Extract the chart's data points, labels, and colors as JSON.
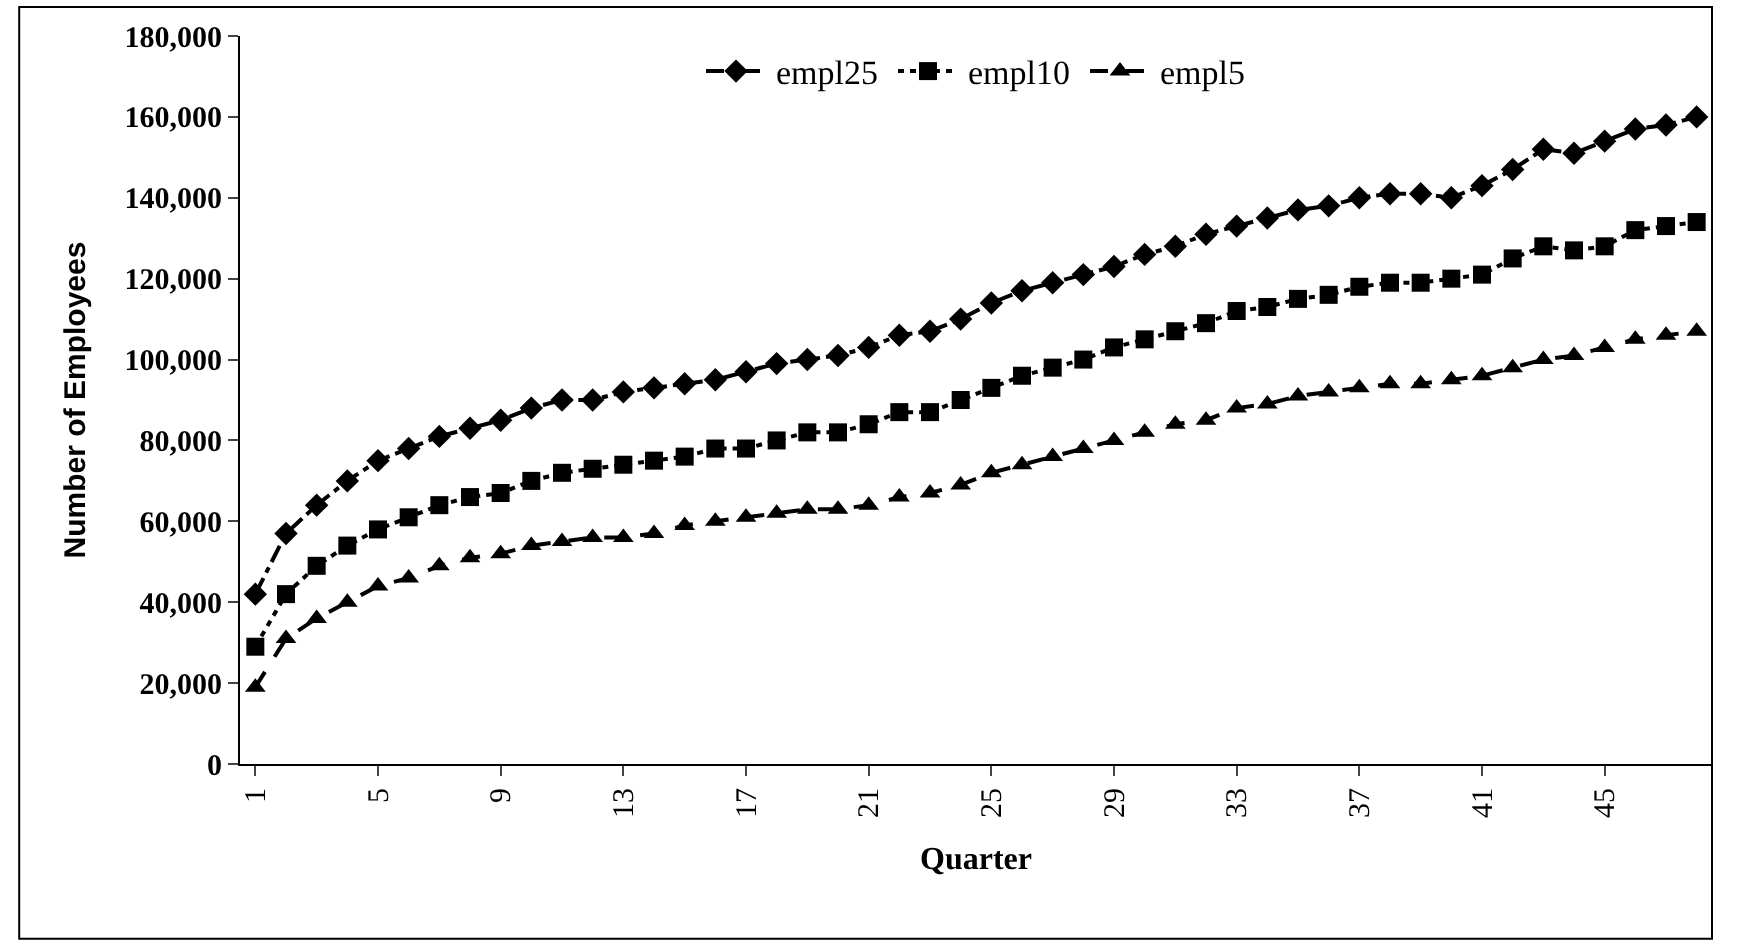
{
  "chart_data": {
    "type": "line",
    "xlabel": "Quarter",
    "ylabel": "Number of Employees",
    "x": [
      1,
      2,
      3,
      4,
      5,
      6,
      7,
      8,
      9,
      10,
      11,
      12,
      13,
      14,
      15,
      16,
      17,
      18,
      19,
      20,
      21,
      22,
      23,
      24,
      25,
      26,
      27,
      28,
      29,
      30,
      31,
      32,
      33,
      34,
      35,
      36,
      37,
      38,
      39,
      40,
      41,
      42,
      43,
      44,
      45,
      46,
      47,
      48
    ],
    "xlim": [
      0.5,
      48.5
    ],
    "xticks": [
      1,
      5,
      9,
      13,
      17,
      21,
      25,
      29,
      33,
      37,
      41,
      45
    ],
    "ylim": [
      0,
      180000
    ],
    "yticks": [
      {
        "value": 0,
        "label": "0"
      },
      {
        "value": 20000,
        "label": "20,000"
      },
      {
        "value": 40000,
        "label": "40,000"
      },
      {
        "value": 60000,
        "label": "60,000"
      },
      {
        "value": 80000,
        "label": "80,000"
      },
      {
        "value": 100000,
        "label": "100,000"
      },
      {
        "value": 120000,
        "label": "120,000"
      },
      {
        "value": 140000,
        "label": "140,000"
      },
      {
        "value": 160000,
        "label": "160,000"
      },
      {
        "value": 180000,
        "label": "180,000"
      }
    ],
    "grid": false,
    "legend": "top",
    "series": [
      {
        "name": "empl25",
        "color": "#000000",
        "marker": "diamond",
        "line_style": "dashdot",
        "values": [
          42000,
          57000,
          64000,
          70000,
          75000,
          78000,
          81000,
          83000,
          85000,
          88000,
          90000,
          90000,
          92000,
          93000,
          94000,
          95000,
          97000,
          99000,
          100000,
          101000,
          103000,
          106000,
          107000,
          110000,
          114000,
          117000,
          119000,
          121000,
          123000,
          126000,
          128000,
          131000,
          133000,
          135000,
          137000,
          138000,
          140000,
          141000,
          141000,
          140000,
          143000,
          147000,
          152000,
          151000,
          154000,
          157000,
          158000,
          160000
        ]
      },
      {
        "name": "empl10",
        "color": "#000000",
        "marker": "square",
        "line_style": "dotted",
        "values": [
          29000,
          42000,
          49000,
          54000,
          58000,
          61000,
          64000,
          66000,
          67000,
          70000,
          72000,
          73000,
          74000,
          75000,
          76000,
          78000,
          78000,
          80000,
          82000,
          82000,
          84000,
          87000,
          87000,
          90000,
          93000,
          96000,
          98000,
          100000,
          103000,
          105000,
          107000,
          109000,
          112000,
          113000,
          115000,
          116000,
          118000,
          119000,
          119000,
          120000,
          121000,
          125000,
          128000,
          127000,
          128000,
          132000,
          133000,
          134000
        ]
      },
      {
        "name": "empl5",
        "color": "#000000",
        "marker": "triangle",
        "line_style": "dashed",
        "values": [
          19000,
          31000,
          36000,
          40000,
          44000,
          46000,
          49000,
          51000,
          52000,
          54000,
          55000,
          56000,
          56000,
          57000,
          59000,
          60000,
          61000,
          62000,
          63000,
          63000,
          64000,
          66000,
          67000,
          69000,
          72000,
          74000,
          76000,
          78000,
          80000,
          82000,
          84000,
          85000,
          88000,
          89000,
          91000,
          92000,
          93000,
          94000,
          94000,
          95000,
          96000,
          98000,
          100000,
          101000,
          103000,
          105000,
          106000,
          107000
        ]
      }
    ]
  }
}
